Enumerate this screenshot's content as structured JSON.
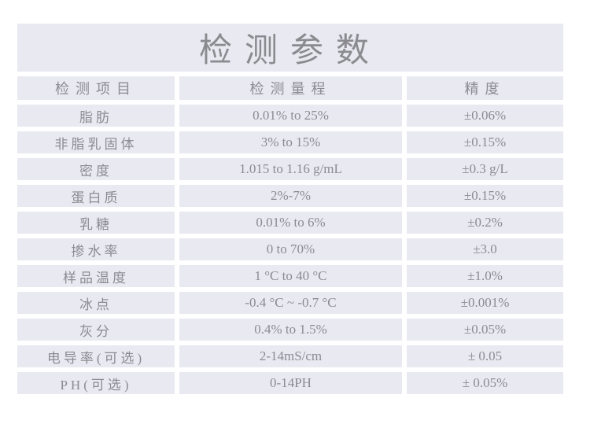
{
  "title": "检测参数",
  "table": {
    "columns": [
      "检测项目",
      "检测量程",
      "精度"
    ],
    "rows": [
      {
        "item": "脂肪",
        "range": "0.01% to 25%",
        "precision": "±0.06%"
      },
      {
        "item": "非脂乳固体",
        "range": "3% to 15%",
        "precision": "±0.15%"
      },
      {
        "item": "密度",
        "range": "1.015 to 1.16 g/mL",
        "precision": "±0.3 g/L"
      },
      {
        "item": "蛋白质",
        "range": "2%-7%",
        "precision": "±0.15%"
      },
      {
        "item": "乳糖",
        "range": "0.01% to 6%",
        "precision": "±0.2%"
      },
      {
        "item": "掺水率",
        "range": "0 to 70%",
        "precision": "±3.0"
      },
      {
        "item": "样品温度",
        "range": "1 °C to 40 °C",
        "precision": "±1.0%"
      },
      {
        "item": "冰点",
        "range": "-0.4 °C ~ -0.7 °C",
        "precision": "±0.001%"
      },
      {
        "item": "灰分",
        "range": "0.4% to 1.5%",
        "precision": "±0.05%"
      },
      {
        "item": "电导率(可选)",
        "range": "2-14mS/cm",
        "precision": "± 0.05"
      },
      {
        "item": "PH(可选)",
        "range": "0-14PH",
        "precision": "± 0.05%"
      }
    ]
  },
  "colors": {
    "cell_background": "#e9e9f1",
    "page_background": "#ffffff",
    "text": "#8b8b92"
  }
}
